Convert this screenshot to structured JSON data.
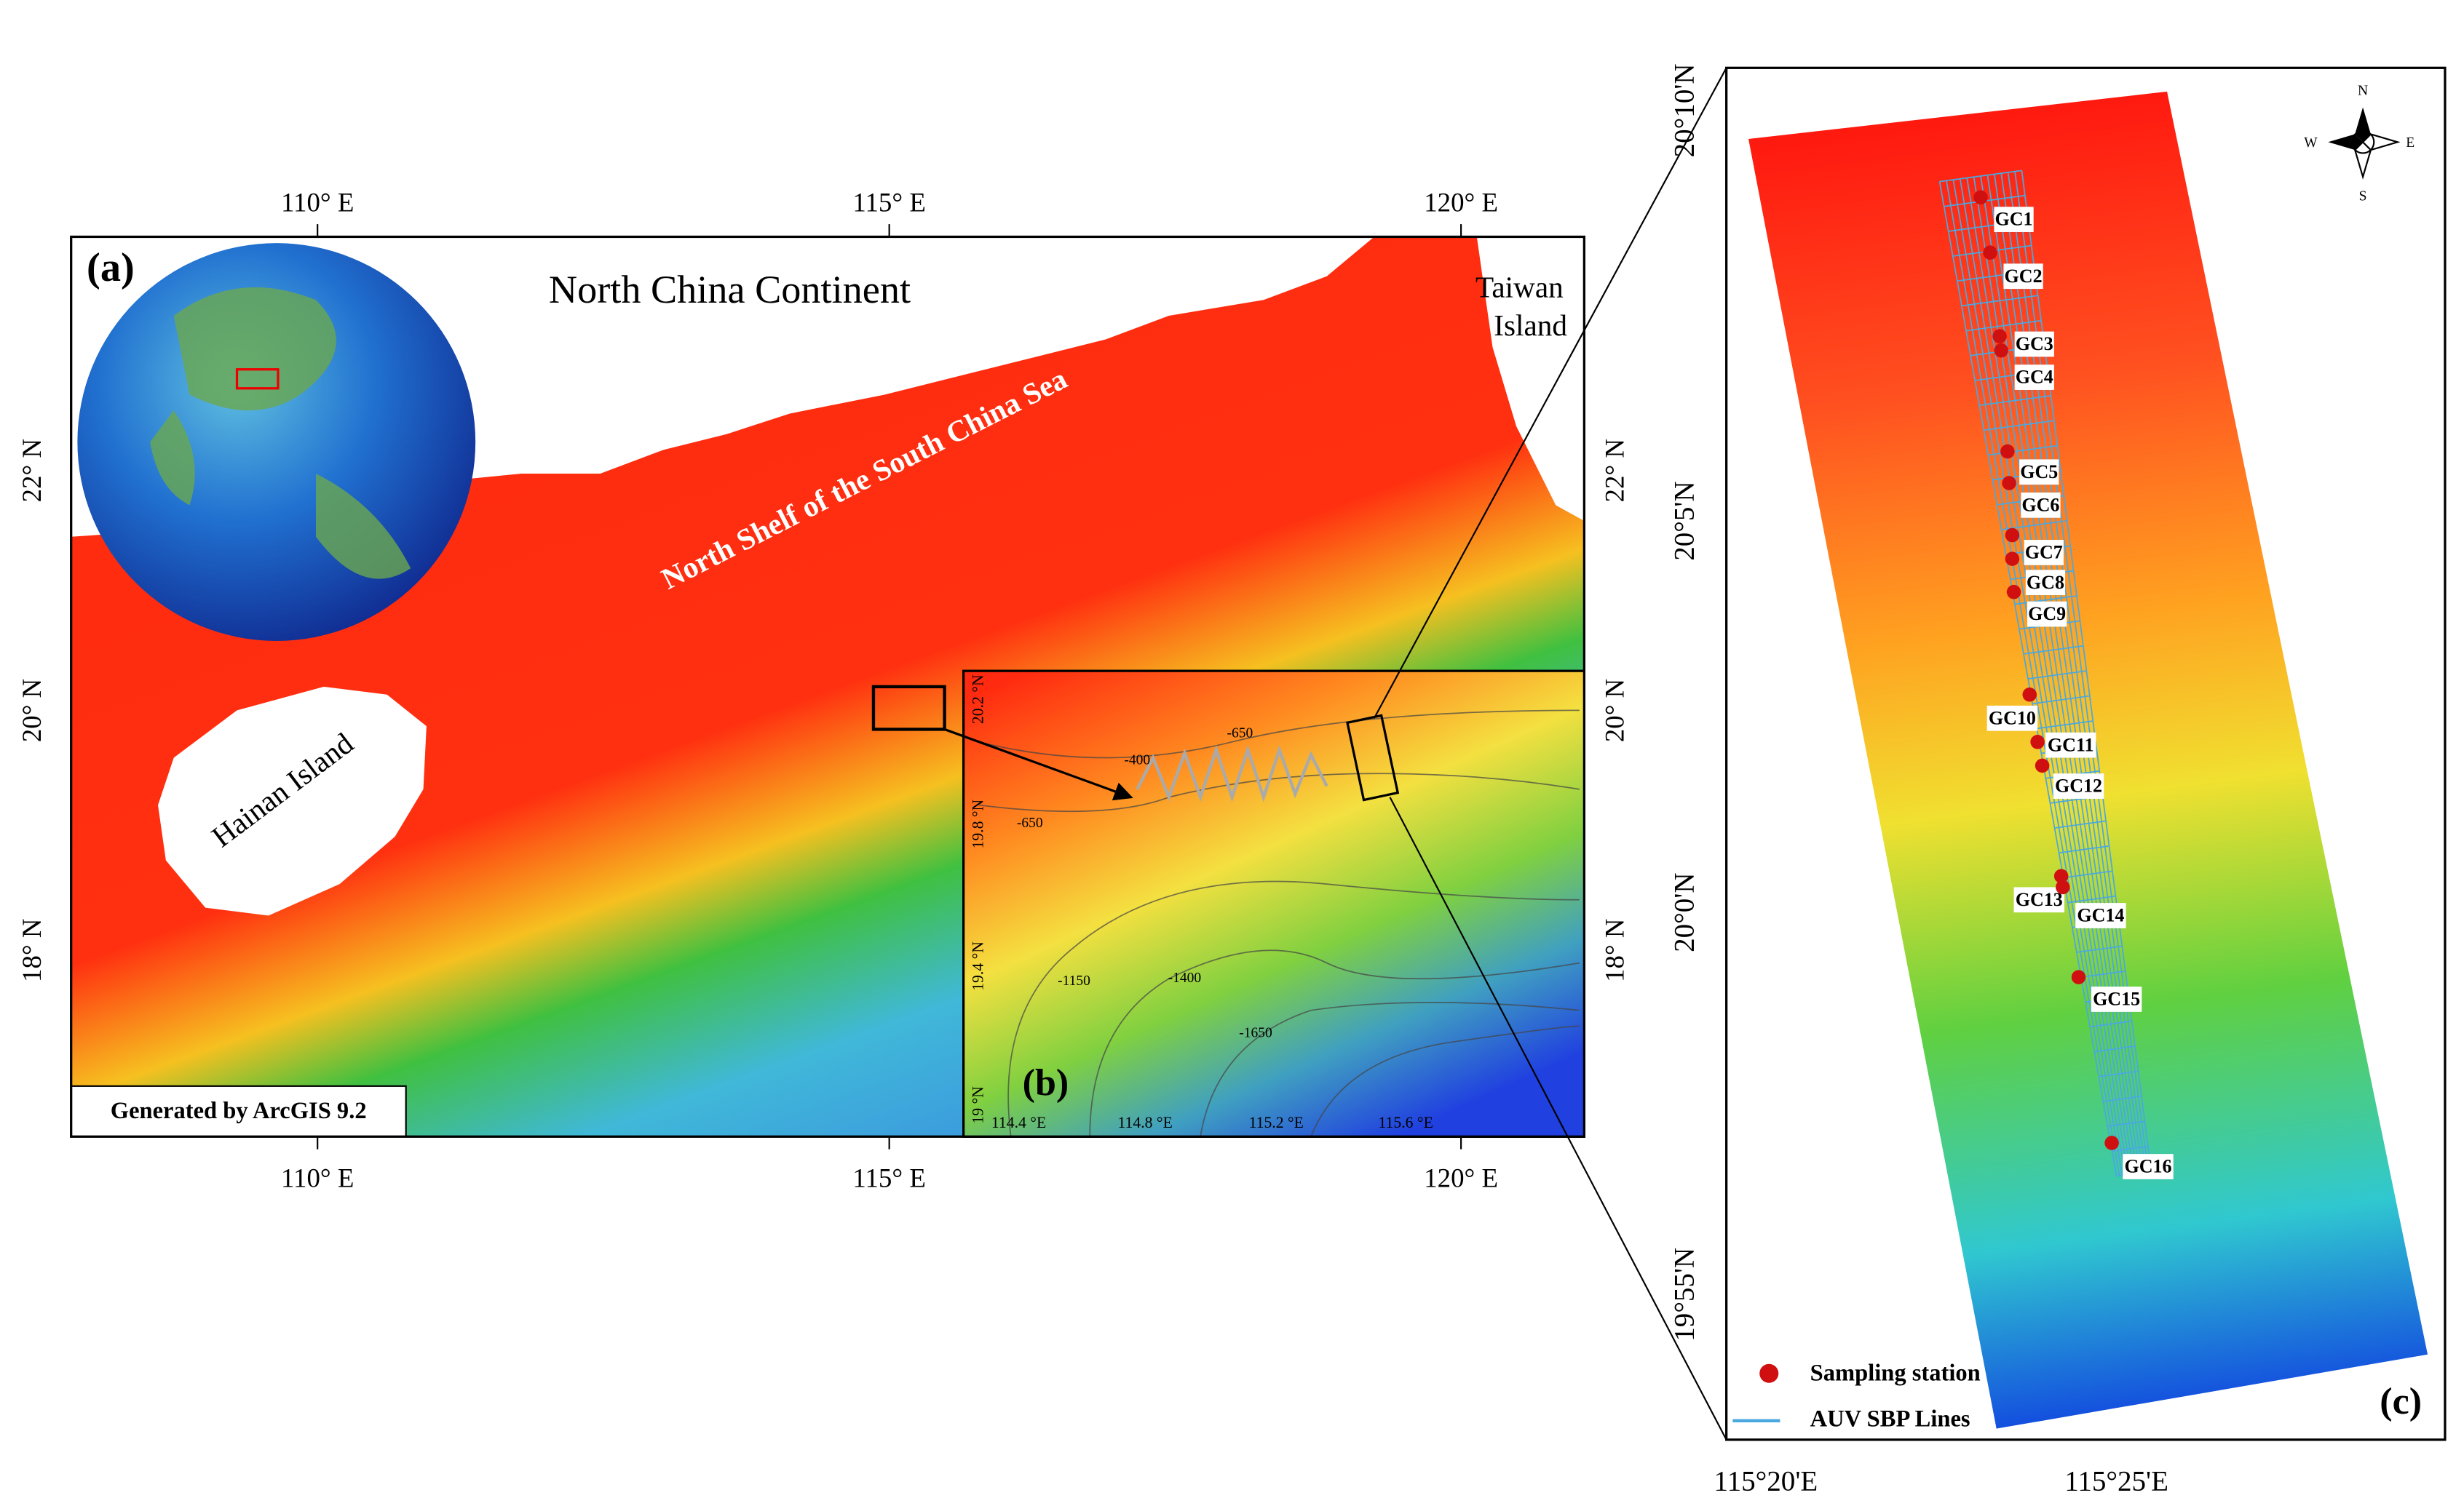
{
  "panel_a": {
    "label": "(a)",
    "title": "North China Continent",
    "taiwan": [
      "Taiwan",
      "Island"
    ],
    "shelf": "North Shelf of  the South China Sea",
    "hainan": "Hainan Island",
    "credit": "Generated by ArcGIS 9.2",
    "x_ticks": [
      "110° E",
      "115° E",
      "120° E"
    ],
    "y_ticks": [
      "22° N",
      "20° N",
      "18° N"
    ]
  },
  "panel_b": {
    "label": "(b)",
    "x_ticks": [
      "114.4 °E",
      "114.8 °E",
      "115.2 °E",
      "115.6 °E"
    ],
    "y_ticks": [
      "20.2 °N",
      "19.8 °N",
      "19.4 °N",
      "19 °N"
    ],
    "contour_labels": [
      "-400",
      "-650",
      "-650",
      "-1150",
      "-1400",
      "-1650"
    ]
  },
  "panel_c": {
    "label": "(c)",
    "stations": [
      "GC1",
      "GC2",
      "GC3",
      "GC4",
      "GC5",
      "GC6",
      "GC7",
      "GC8",
      "GC9",
      "GC10",
      "GC11",
      "GC12",
      "GC13",
      "GC14",
      "GC15",
      "GC16"
    ],
    "x_ticks": [
      "115°20'E",
      "115°25'E"
    ],
    "y_ticks": [
      "20°10'N",
      "20°5'N",
      "20°0'N",
      "19°55'N"
    ],
    "legend": [
      "Sampling station",
      "AUV SBP Lines"
    ],
    "compass": [
      "N",
      "E",
      "S",
      "W"
    ]
  }
}
